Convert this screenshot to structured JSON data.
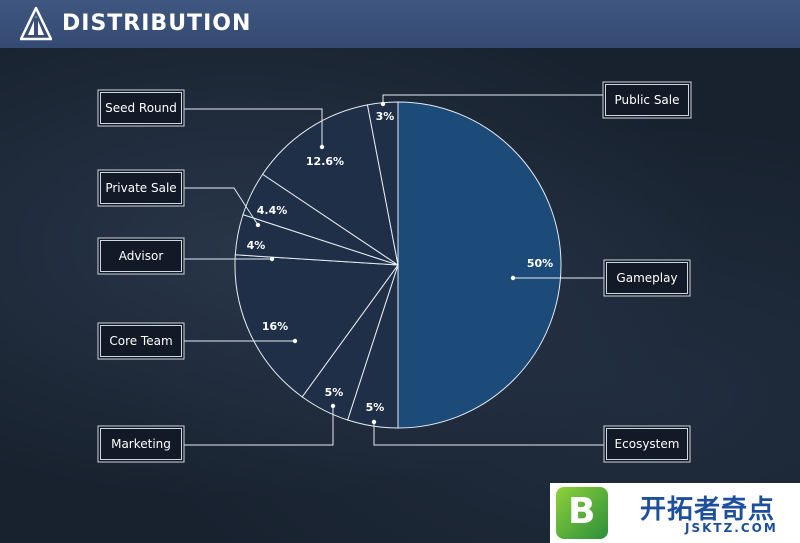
{
  "header": {
    "title": "DISTRIBUTION"
  },
  "colors": {
    "header_bg": "#3a5079",
    "background": "#1b2637",
    "gameplay_slice": "#1d4b79",
    "other_slices": "#1f2f48",
    "lines": "#e6ebf2"
  },
  "chart_data": {
    "type": "pie",
    "title": "",
    "slices": [
      {
        "label": "Gameplay",
        "value": 50,
        "display": "50%"
      },
      {
        "label": "Ecosystem",
        "value": 5,
        "display": "5%"
      },
      {
        "label": "Marketing",
        "value": 5,
        "display": "5%"
      },
      {
        "label": "Core Team",
        "value": 16,
        "display": "16%"
      },
      {
        "label": "Advisor",
        "value": 4,
        "display": "4%"
      },
      {
        "label": "Private Sale",
        "value": 4.4,
        "display": "4.4%"
      },
      {
        "label": "Seed Round",
        "value": 12.6,
        "display": "12.6%"
      },
      {
        "label": "Public Sale",
        "value": 3,
        "display": "3%"
      }
    ]
  },
  "watermark": {
    "icon_letter": "B",
    "brand_cn": "开拓者奇点",
    "brand_en": "JSKTZ.COM"
  }
}
